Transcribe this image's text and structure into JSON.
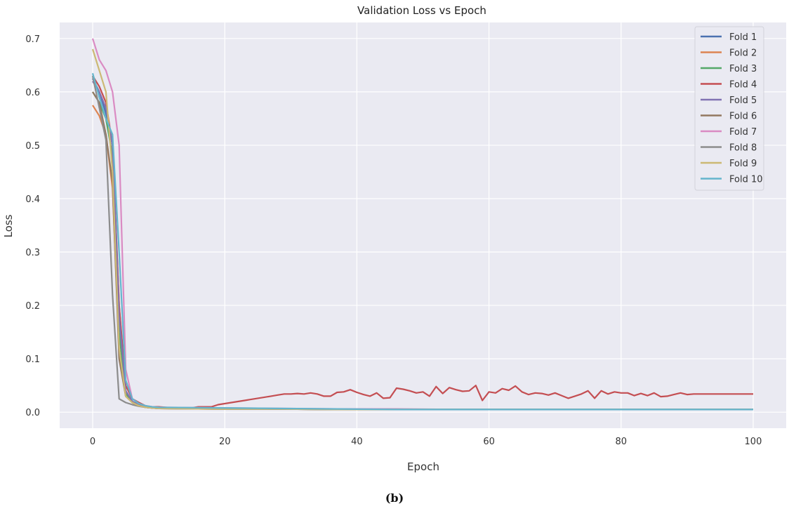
{
  "caption": "(b)",
  "chart_data": {
    "type": "line",
    "title": "Validation Loss vs Epoch",
    "xlabel": "Epoch",
    "ylabel": "Loss",
    "xlim": [
      -5,
      105
    ],
    "ylim": [
      -0.03,
      0.73
    ],
    "xticks": [
      0,
      20,
      40,
      60,
      80,
      100
    ],
    "yticks": [
      0.0,
      0.1,
      0.2,
      0.3,
      0.4,
      0.5,
      0.6,
      0.7
    ],
    "grid": true,
    "background": "#eaeaf2",
    "legend_position": "top-right",
    "series": [
      {
        "name": "Fold 1",
        "color": "#4c72b0",
        "values": [
          0.625,
          0.6,
          0.56,
          0.5,
          0.2,
          0.04,
          0.02,
          0.014,
          0.01,
          0.009,
          0.008,
          0.007,
          0.006,
          0.006,
          0.005,
          0.005,
          0.005,
          0.005,
          0.005,
          0.005,
          0.005
        ]
      },
      {
        "name": "Fold 2",
        "color": "#dd8452",
        "values": [
          0.575,
          0.555,
          0.52,
          0.42,
          0.12,
          0.03,
          0.018,
          0.012,
          0.009,
          0.008,
          0.007,
          0.006,
          0.006,
          0.005,
          0.005,
          0.005,
          0.005,
          0.005,
          0.005,
          0.005,
          0.005
        ]
      },
      {
        "name": "Fold 3",
        "color": "#55a868",
        "values": [
          0.6,
          0.58,
          0.55,
          0.48,
          0.15,
          0.035,
          0.02,
          0.013,
          0.01,
          0.009,
          0.008,
          0.007,
          0.006,
          0.006,
          0.005,
          0.005,
          0.005,
          0.005,
          0.005,
          0.005,
          0.005
        ]
      },
      {
        "name": "Fold 4",
        "color": "#c44e52",
        "values": [
          0.63,
          0.61,
          0.58,
          0.5,
          0.2,
          0.05,
          0.025,
          0.018,
          0.012,
          0.01,
          0.01,
          0.009,
          0.008,
          0.007,
          0.007,
          0.008,
          0.01,
          0.01,
          0.01,
          0.014,
          0.016,
          0.018,
          0.02,
          0.022,
          0.024,
          0.026,
          0.028,
          0.03,
          0.032,
          0.034,
          0.034,
          0.035,
          0.034,
          0.036,
          0.034,
          0.03,
          0.03,
          0.037,
          0.038,
          0.042,
          0.037,
          0.033,
          0.03,
          0.036,
          0.026,
          0.027,
          0.045,
          0.043,
          0.04,
          0.036,
          0.038,
          0.03,
          0.048,
          0.035,
          0.046,
          0.042,
          0.039,
          0.04,
          0.05,
          0.022,
          0.038,
          0.036,
          0.044,
          0.041,
          0.049,
          0.038,
          0.033,
          0.036,
          0.035,
          0.032,
          0.036,
          0.031,
          0.026,
          0.03,
          0.034,
          0.04,
          0.026,
          0.04,
          0.034,
          0.038,
          0.036,
          0.036,
          0.031,
          0.035,
          0.031,
          0.036,
          0.029,
          0.03,
          0.033,
          0.036,
          0.033,
          0.034,
          0.034,
          0.034,
          0.034,
          0.034,
          0.034,
          0.034,
          0.034,
          0.034,
          0.034
        ]
      },
      {
        "name": "Fold 5",
        "color": "#8172b3",
        "values": [
          0.62,
          0.6,
          0.57,
          0.5,
          0.18,
          0.04,
          0.02,
          0.013,
          0.01,
          0.009,
          0.008,
          0.007,
          0.006,
          0.006,
          0.005,
          0.005,
          0.005,
          0.005,
          0.005,
          0.005,
          0.005
        ]
      },
      {
        "name": "Fold 6",
        "color": "#937860",
        "values": [
          0.6,
          0.58,
          0.52,
          0.43,
          0.1,
          0.03,
          0.018,
          0.012,
          0.009,
          0.008,
          0.007,
          0.006,
          0.006,
          0.005,
          0.005,
          0.005,
          0.005,
          0.005,
          0.005,
          0.005,
          0.005
        ]
      },
      {
        "name": "Fold 7",
        "color": "#da8bc3",
        "values": [
          0.7,
          0.66,
          0.64,
          0.6,
          0.5,
          0.08,
          0.025,
          0.016,
          0.012,
          0.01,
          0.009,
          0.008,
          0.007,
          0.006,
          0.006,
          0.005,
          0.005,
          0.005,
          0.005,
          0.005,
          0.005
        ]
      },
      {
        "name": "Fold 8",
        "color": "#8c8c8c",
        "values": [
          0.63,
          0.57,
          0.51,
          0.22,
          0.025,
          0.018,
          0.014,
          0.011,
          0.009,
          0.008,
          0.007,
          0.006,
          0.006,
          0.005,
          0.005,
          0.005,
          0.005,
          0.005,
          0.005,
          0.005,
          0.005
        ]
      },
      {
        "name": "Fold 9",
        "color": "#ccb974",
        "values": [
          0.68,
          0.64,
          0.6,
          0.45,
          0.12,
          0.03,
          0.018,
          0.012,
          0.009,
          0.008,
          0.007,
          0.006,
          0.006,
          0.005,
          0.005,
          0.005,
          0.005,
          0.005,
          0.005,
          0.005,
          0.005
        ]
      },
      {
        "name": "Fold 10",
        "color": "#64b5cd",
        "values": [
          0.635,
          0.59,
          0.55,
          0.52,
          0.3,
          0.06,
          0.025,
          0.016,
          0.012,
          0.01,
          0.009,
          0.008,
          0.007,
          0.006,
          0.005,
          0.005,
          0.005,
          0.005,
          0.005,
          0.005,
          0.005
        ]
      }
    ]
  }
}
